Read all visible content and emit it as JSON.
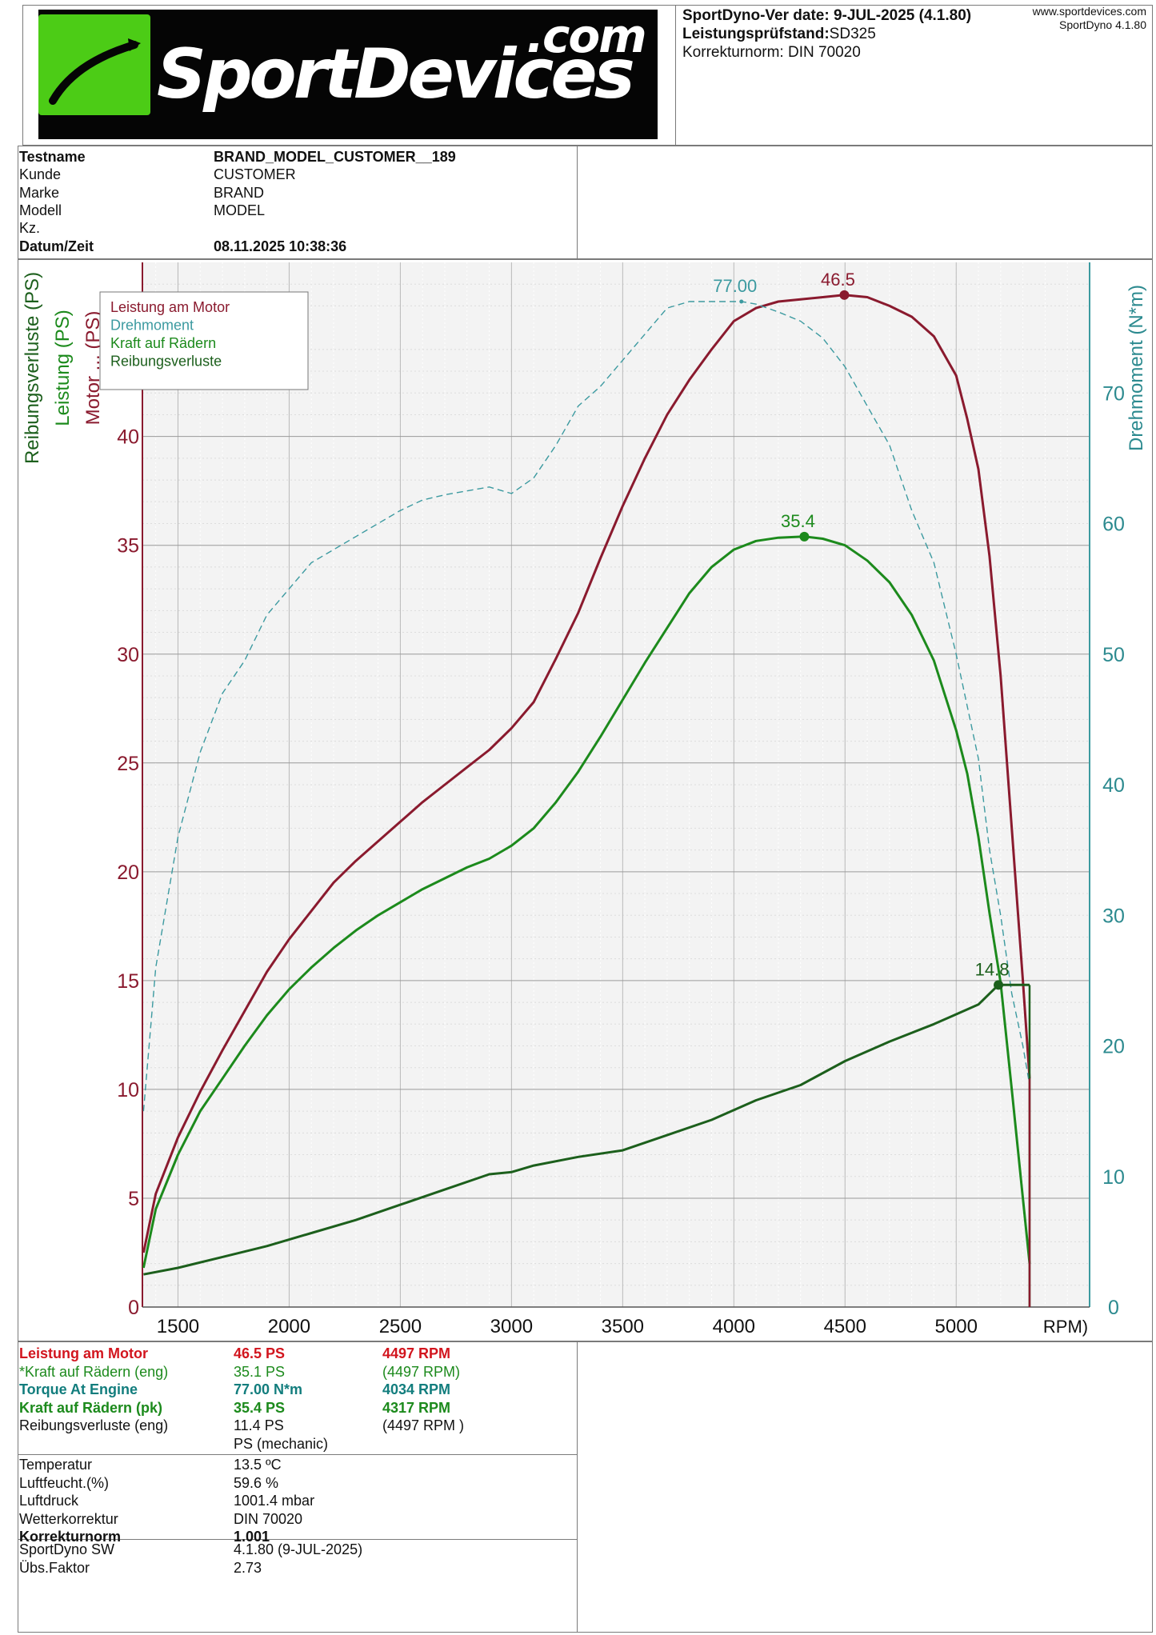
{
  "header": {
    "logo_main": "SportDevices",
    "logo_com": ".com",
    "version_label": "SportDyno-Ver date: 9-JUL-2025 (4.1.80)",
    "bench_label": "Leistungsprüfstand:",
    "bench_value": "SD325",
    "norm_line": "Korrekturnorm: DIN 70020",
    "website": "www.sportdevices.com",
    "software": "SportDyno 4.1.80"
  },
  "test_info": [
    {
      "label": "Testname",
      "value": "BRAND_MODEL_CUSTOMER__189",
      "bold": true
    },
    {
      "label": "Kunde",
      "value": "CUSTOMER",
      "bold": false
    },
    {
      "label": "Marke",
      "value": "BRAND",
      "bold": false
    },
    {
      "label": "Modell",
      "value": "MODEL",
      "bold": false
    },
    {
      "label": "Kz.",
      "value": "",
      "bold": false
    },
    {
      "label": "Datum/Zeit",
      "value": "08.11.2025 10:38:36",
      "bold": true
    }
  ],
  "chart_data": {
    "type": "line",
    "xlabel": "RPM)",
    "xlim": [
      1340,
      5600
    ],
    "x_ticks": [
      1500,
      2000,
      2500,
      3000,
      3500,
      4000,
      4500,
      5000
    ],
    "ylim_left": [
      0,
      48
    ],
    "y_ticks_left": [
      0,
      5,
      10,
      15,
      20,
      25,
      30,
      35,
      40
    ],
    "ylim_right": [
      0,
      80
    ],
    "y_ticks_right": [
      0,
      10,
      20,
      30,
      40,
      50,
      60,
      70
    ],
    "left_axis_labels": [
      {
        "text": "Reibungsverluste (PS)",
        "color": "#1c5f1c"
      },
      {
        "text": "Leistung (PS)",
        "color": "#1c8a1c"
      },
      {
        "text": "Motor ... (PS)",
        "color": "#8a1a2e"
      }
    ],
    "right_axis_label": "Drehmoment (N*m)",
    "legend": [
      "Leistung am Motor",
      "Drehmoment",
      "Kraft auf Rädern",
      "Reibungsverluste"
    ],
    "legend_position": "top-left",
    "grid": true,
    "series": [
      {
        "name": "Leistung am Motor",
        "color": "#8a1a2e",
        "axis": "left",
        "style": "solid",
        "x": [
          1345,
          1400,
          1500,
          1600,
          1700,
          1800,
          1900,
          2000,
          2100,
          2200,
          2300,
          2400,
          2500,
          2600,
          2700,
          2800,
          2900,
          3000,
          3100,
          3200,
          3300,
          3400,
          3500,
          3600,
          3700,
          3800,
          3900,
          4000,
          4100,
          4200,
          4300,
          4400,
          4497,
          4600,
          4700,
          4800,
          4900,
          5000,
          5050,
          5100,
          5150,
          5200,
          5250,
          5300,
          5330
        ],
        "y": [
          2.5,
          5.2,
          7.8,
          9.9,
          11.8,
          13.6,
          15.4,
          16.9,
          18.2,
          19.5,
          20.5,
          21.4,
          22.3,
          23.2,
          24.0,
          24.8,
          25.6,
          26.6,
          27.8,
          29.8,
          31.9,
          34.4,
          36.8,
          39.0,
          41.0,
          42.6,
          44.0,
          45.3,
          45.9,
          46.2,
          46.3,
          46.4,
          46.5,
          46.4,
          46.0,
          45.5,
          44.6,
          42.8,
          40.8,
          38.5,
          34.5,
          29.0,
          22.0,
          15.0,
          10.5
        ]
      },
      {
        "name": "Drehmoment",
        "color": "#3c9aa0",
        "axis": "right",
        "style": "dashed",
        "x": [
          1345,
          1400,
          1500,
          1600,
          1700,
          1800,
          1900,
          2000,
          2100,
          2200,
          2300,
          2400,
          2500,
          2600,
          2700,
          2800,
          2900,
          3000,
          3100,
          3200,
          3300,
          3400,
          3500,
          3600,
          3700,
          3800,
          3900,
          4000,
          4034,
          4100,
          4200,
          4300,
          4400,
          4500,
          4600,
          4700,
          4800,
          4900,
          5000,
          5100,
          5150,
          5200,
          5250,
          5300,
          5330
        ],
        "y": [
          15,
          26,
          36,
          42.5,
          47,
          49.5,
          53,
          55,
          57,
          58,
          59,
          60,
          61,
          61.8,
          62.2,
          62.5,
          62.8,
          62.3,
          63.5,
          66,
          69,
          70.5,
          72.5,
          74.5,
          76.5,
          77,
          77,
          77,
          77.0,
          76.8,
          76.2,
          75.5,
          74.2,
          72,
          69,
          66,
          61,
          57,
          50,
          42,
          35,
          30,
          24,
          20,
          17
        ]
      },
      {
        "name": "Kraft auf Rädern",
        "color": "#1c8a1c",
        "axis": "left",
        "style": "solid",
        "x": [
          1345,
          1400,
          1500,
          1600,
          1700,
          1800,
          1900,
          2000,
          2100,
          2200,
          2300,
          2400,
          2500,
          2600,
          2700,
          2800,
          2900,
          3000,
          3100,
          3200,
          3300,
          3400,
          3500,
          3600,
          3700,
          3800,
          3900,
          4000,
          4100,
          4200,
          4317,
          4400,
          4500,
          4600,
          4700,
          4800,
          4900,
          5000,
          5050,
          5100,
          5150,
          5200,
          5250,
          5300,
          5330
        ],
        "y": [
          1.8,
          4.5,
          7.0,
          9.0,
          10.5,
          12.0,
          13.4,
          14.6,
          15.6,
          16.5,
          17.3,
          18.0,
          18.6,
          19.2,
          19.7,
          20.2,
          20.6,
          21.2,
          22.0,
          23.2,
          24.6,
          26.2,
          27.9,
          29.6,
          31.2,
          32.8,
          34.0,
          34.8,
          35.2,
          35.35,
          35.4,
          35.3,
          35.0,
          34.3,
          33.3,
          31.8,
          29.7,
          26.5,
          24.5,
          21.6,
          18.1,
          14.9,
          10.0,
          5.0,
          2.0
        ]
      },
      {
        "name": "Reibungsverluste",
        "color": "#1c5f1c",
        "axis": "left",
        "style": "solid",
        "x": [
          1345,
          1500,
          1700,
          1900,
          2100,
          2300,
          2500,
          2700,
          2900,
          3000,
          3100,
          3300,
          3500,
          3700,
          3900,
          4100,
          4300,
          4500,
          4700,
          4900,
          5100,
          5190,
          5330
        ],
        "y": [
          1.5,
          1.8,
          2.3,
          2.8,
          3.4,
          4.0,
          4.7,
          5.4,
          6.1,
          6.2,
          6.5,
          6.9,
          7.2,
          7.9,
          8.6,
          9.5,
          10.2,
          11.3,
          12.2,
          13.0,
          13.9,
          14.8,
          14.8
        ]
      }
    ],
    "annotations": [
      {
        "text": "46.5",
        "x": 4497,
        "y": 46.5,
        "color": "#8a1a2e",
        "axis": "left"
      },
      {
        "text": "77.00",
        "x": 4034,
        "y": 77.0,
        "color": "#3c9aa0",
        "axis": "right"
      },
      {
        "text": "35.4",
        "x": 4317,
        "y": 35.4,
        "color": "#1c8a1c",
        "axis": "left"
      },
      {
        "text": "14.8",
        "x": 5190,
        "y": 14.8,
        "color": "#1c5f1c",
        "axis": "left"
      }
    ]
  },
  "results": [
    {
      "label": "Leistung am Motor",
      "value": "46.5 PS",
      "rpm": "4497 RPM",
      "color": "#d2151e",
      "bold": true
    },
    {
      "label": "*Kraft auf Rädern (eng)",
      "value": "35.1 PS",
      "rpm": "(4497 RPM)",
      "color": "#1c8a1c",
      "bold": false
    },
    {
      "label": "Torque At Engine",
      "value": "77.00 N*m",
      "rpm": "4034 RPM",
      "color": "#127d7d",
      "bold": true
    },
    {
      "label": "Kraft auf Rädern (pk)",
      "value": "35.4 PS",
      "rpm": "4317 RPM",
      "color": "#1c8a1c",
      "bold": true
    },
    {
      "label": "Reibungsverluste (eng)",
      "value": "11.4 PS",
      "rpm": "(4497 RPM )",
      "color": "#111111",
      "bold": false
    },
    {
      "label": "",
      "value": "PS (mechanic)",
      "rpm": "",
      "color": "#111111",
      "bold": false
    }
  ],
  "conditions": [
    {
      "label": "Temperatur",
      "value": "13.5 ºC",
      "bold": false
    },
    {
      "label": "Luftfeucht.(%)",
      "value": "59.6 %",
      "bold": false
    },
    {
      "label": "Luftdruck",
      "value": "1001.4 mbar",
      "bold": false
    },
    {
      "label": "Wetterkorrektur",
      "value": "DIN 70020",
      "bold": false
    },
    {
      "label": "Korrekturnorm",
      "value": "1.001",
      "bold": true
    }
  ],
  "software_info": [
    {
      "label": "SportDyno SW",
      "value": "4.1.80 (9-JUL-2025)"
    },
    {
      "label": "Übs.Faktor",
      "value": "2.73"
    }
  ]
}
